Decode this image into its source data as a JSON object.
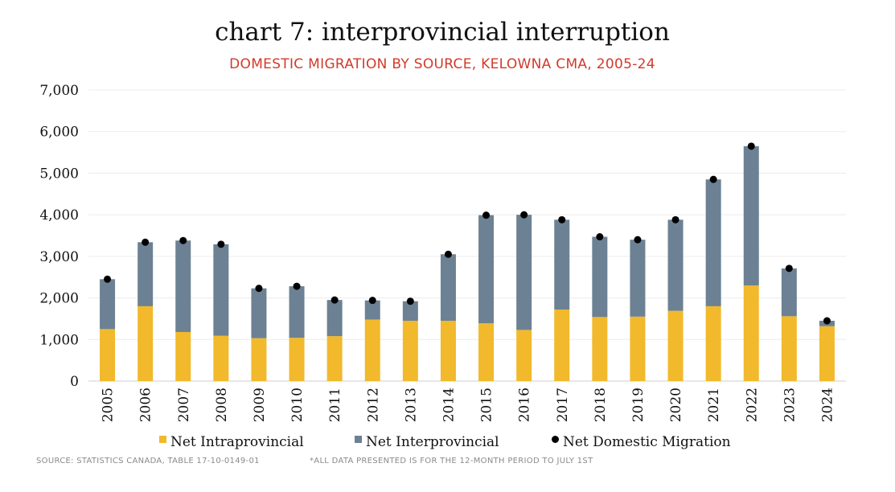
{
  "chart_data": {
    "type": "bar",
    "stacked": true,
    "title": "chart 7: interprovincial interruption",
    "subtitle": "DOMESTIC MIGRATION BY SOURCE, KELOWNA CMA, 2005-24",
    "categories": [
      "2005",
      "2006",
      "2007",
      "2008",
      "2009",
      "2010",
      "2011",
      "2012",
      "2013",
      "2014",
      "2015",
      "2016",
      "2017",
      "2018",
      "2019",
      "2020",
      "2021",
      "2022",
      "2023",
      "2024"
    ],
    "series": [
      {
        "name": "Net Intraprovincial",
        "type": "bar",
        "color": "#f1b92b",
        "values": [
          1250,
          1800,
          1180,
          1090,
          1030,
          1040,
          1080,
          1480,
          1450,
          1450,
          1390,
          1230,
          1720,
          1540,
          1550,
          1690,
          1800,
          2300,
          1560,
          1320
        ]
      },
      {
        "name": "Net Interprovincial",
        "type": "bar",
        "color": "#6c8193",
        "values": [
          1200,
          1540,
          2200,
          2200,
          1200,
          1240,
          870,
          460,
          470,
          1600,
          2600,
          2770,
          2160,
          1930,
          1850,
          2190,
          3050,
          3350,
          1150,
          130
        ]
      },
      {
        "name": "Net Domestic Migration",
        "type": "marker",
        "color": "#000000",
        "values": [
          2450,
          3340,
          3380,
          3290,
          2230,
          2280,
          1950,
          1940,
          1920,
          3050,
          3990,
          4000,
          3880,
          3470,
          3400,
          3880,
          4850,
          5650,
          2710,
          1450
        ]
      }
    ],
    "ylim": [
      0,
      7000
    ],
    "yticks": [
      "0",
      "1,000",
      "2,000",
      "3,000",
      "4,000",
      "5,000",
      "6,000",
      "7,000"
    ],
    "ytick_values": [
      0,
      1000,
      2000,
      3000,
      4000,
      5000,
      6000,
      7000
    ],
    "grid": true,
    "legend_position": "bottom",
    "source": "SOURCE: STATISTICS CANADA, TABLE 17-10-0149-01",
    "note": "*ALL DATA PRESENTED IS FOR THE 12-MONTH PERIOD TO JULY 1ST"
  }
}
